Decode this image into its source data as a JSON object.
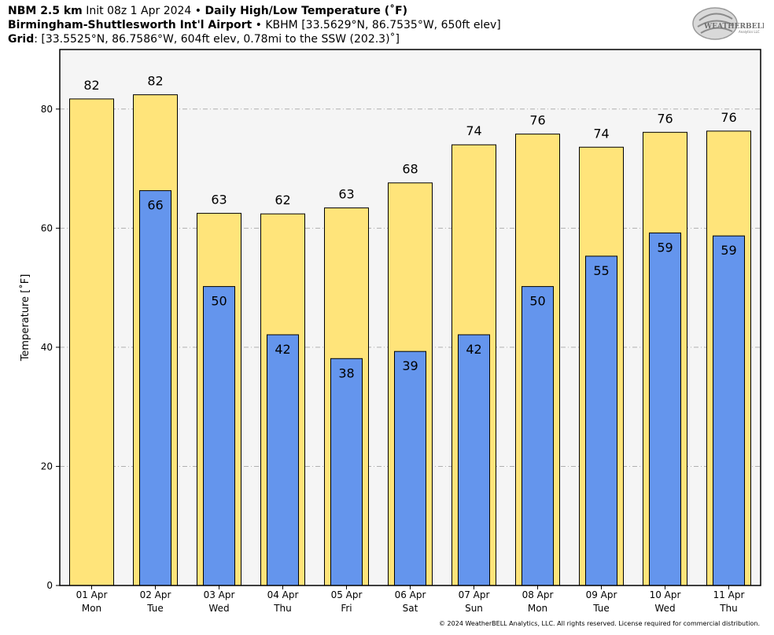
{
  "header": {
    "model": "NBM 2.5 km",
    "init": "Init 08z 1 Apr 2024",
    "bullet": "•",
    "product": "Daily High/Low Temperature (˚F)",
    "station_name": "Birmingham-Shuttlesworth Int'l Airport",
    "station_info": "KBHM [33.5629°N, 86.7535°W, 650ft elev]",
    "grid_label": "Grid",
    "grid_info": ": [33.5525°N, 86.7586°W, 604ft elev, 0.78mi to the SSW (202.3)˚]"
  },
  "logo": {
    "text_main": "WEATHERBELL",
    "text_sub": "Analytics LLC"
  },
  "copyright": "© 2024 WeatherBELL Analytics, LLC. All rights reserved. License required for commercial distribution.",
  "chart_data": {
    "type": "bar",
    "ylabel": "Temperature [˚F]",
    "ylim": [
      0,
      90
    ],
    "yticks": [
      0,
      20,
      40,
      60,
      80
    ],
    "grid": true,
    "categories": [
      {
        "date": "01 Apr",
        "day": "Mon"
      },
      {
        "date": "02 Apr",
        "day": "Tue"
      },
      {
        "date": "03 Apr",
        "day": "Wed"
      },
      {
        "date": "04 Apr",
        "day": "Thu"
      },
      {
        "date": "05 Apr",
        "day": "Fri"
      },
      {
        "date": "06 Apr",
        "day": "Sat"
      },
      {
        "date": "07 Apr",
        "day": "Sun"
      },
      {
        "date": "08 Apr",
        "day": "Mon"
      },
      {
        "date": "09 Apr",
        "day": "Tue"
      },
      {
        "date": "10 Apr",
        "day": "Wed"
      },
      {
        "date": "11 Apr",
        "day": "Thu"
      }
    ],
    "series": [
      {
        "values": [
          81.7,
          82.4,
          62.5,
          62.4,
          63.4,
          67.6,
          74.0,
          75.8,
          73.6,
          76.1,
          76.3
        ],
        "labels": [
          "82",
          "82",
          "63",
          "62",
          "63",
          "68",
          "74",
          "76",
          "74",
          "76",
          "76"
        ],
        "color": "#ffe47a"
      },
      {
        "values": [
          null,
          66.3,
          50.2,
          42.1,
          38.1,
          39.3,
          42.1,
          50.2,
          55.3,
          59.2,
          58.7
        ],
        "labels": [
          null,
          "66",
          "50",
          "42",
          "38",
          "39",
          "42",
          "50",
          "55",
          "59",
          "59"
        ],
        "color": "#6495ed"
      }
    ]
  }
}
